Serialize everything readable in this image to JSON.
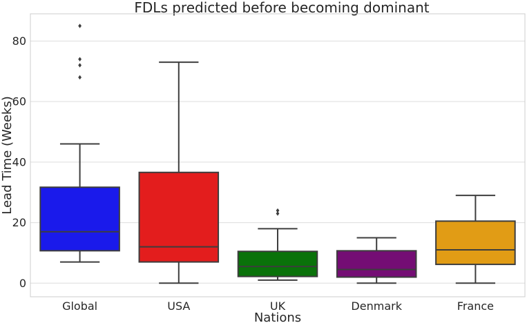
{
  "chart_data": {
    "type": "boxplot",
    "title": "FDLs predicted before becoming dominant",
    "xlabel": "Nations",
    "ylabel": "Lead Time (Weeks)",
    "ylim": [
      -4.5,
      89
    ],
    "yticks": [
      0,
      20,
      40,
      60,
      80
    ],
    "grid": true,
    "categories": [
      "Global",
      "USA",
      "UK",
      "Denmark",
      "France"
    ],
    "boxes": [
      {
        "category": "Global",
        "color": "#1a1aeb",
        "whisker_low": 7,
        "q1": 10.7,
        "median": 17,
        "q3": 31.7,
        "whisker_high": 46,
        "outliers": [
          68,
          72,
          74,
          85
        ]
      },
      {
        "category": "USA",
        "color": "#e31d1d",
        "whisker_low": 0,
        "q1": 7,
        "median": 12,
        "q3": 36.6,
        "whisker_high": 73,
        "outliers": []
      },
      {
        "category": "UK",
        "color": "#0a720a",
        "whisker_low": 1,
        "q1": 2.2,
        "median": 5.5,
        "q3": 10.5,
        "whisker_high": 18,
        "outliers": [
          23,
          24
        ]
      },
      {
        "category": "Denmark",
        "color": "#740d74",
        "whisker_low": 0,
        "q1": 2,
        "median": 4.5,
        "q3": 10.7,
        "whisker_high": 15,
        "outliers": []
      },
      {
        "category": "France",
        "color": "#e19c15",
        "whisker_low": 0,
        "q1": 6.2,
        "median": 11,
        "q3": 20.5,
        "whisker_high": 29,
        "outliers": []
      }
    ]
  }
}
